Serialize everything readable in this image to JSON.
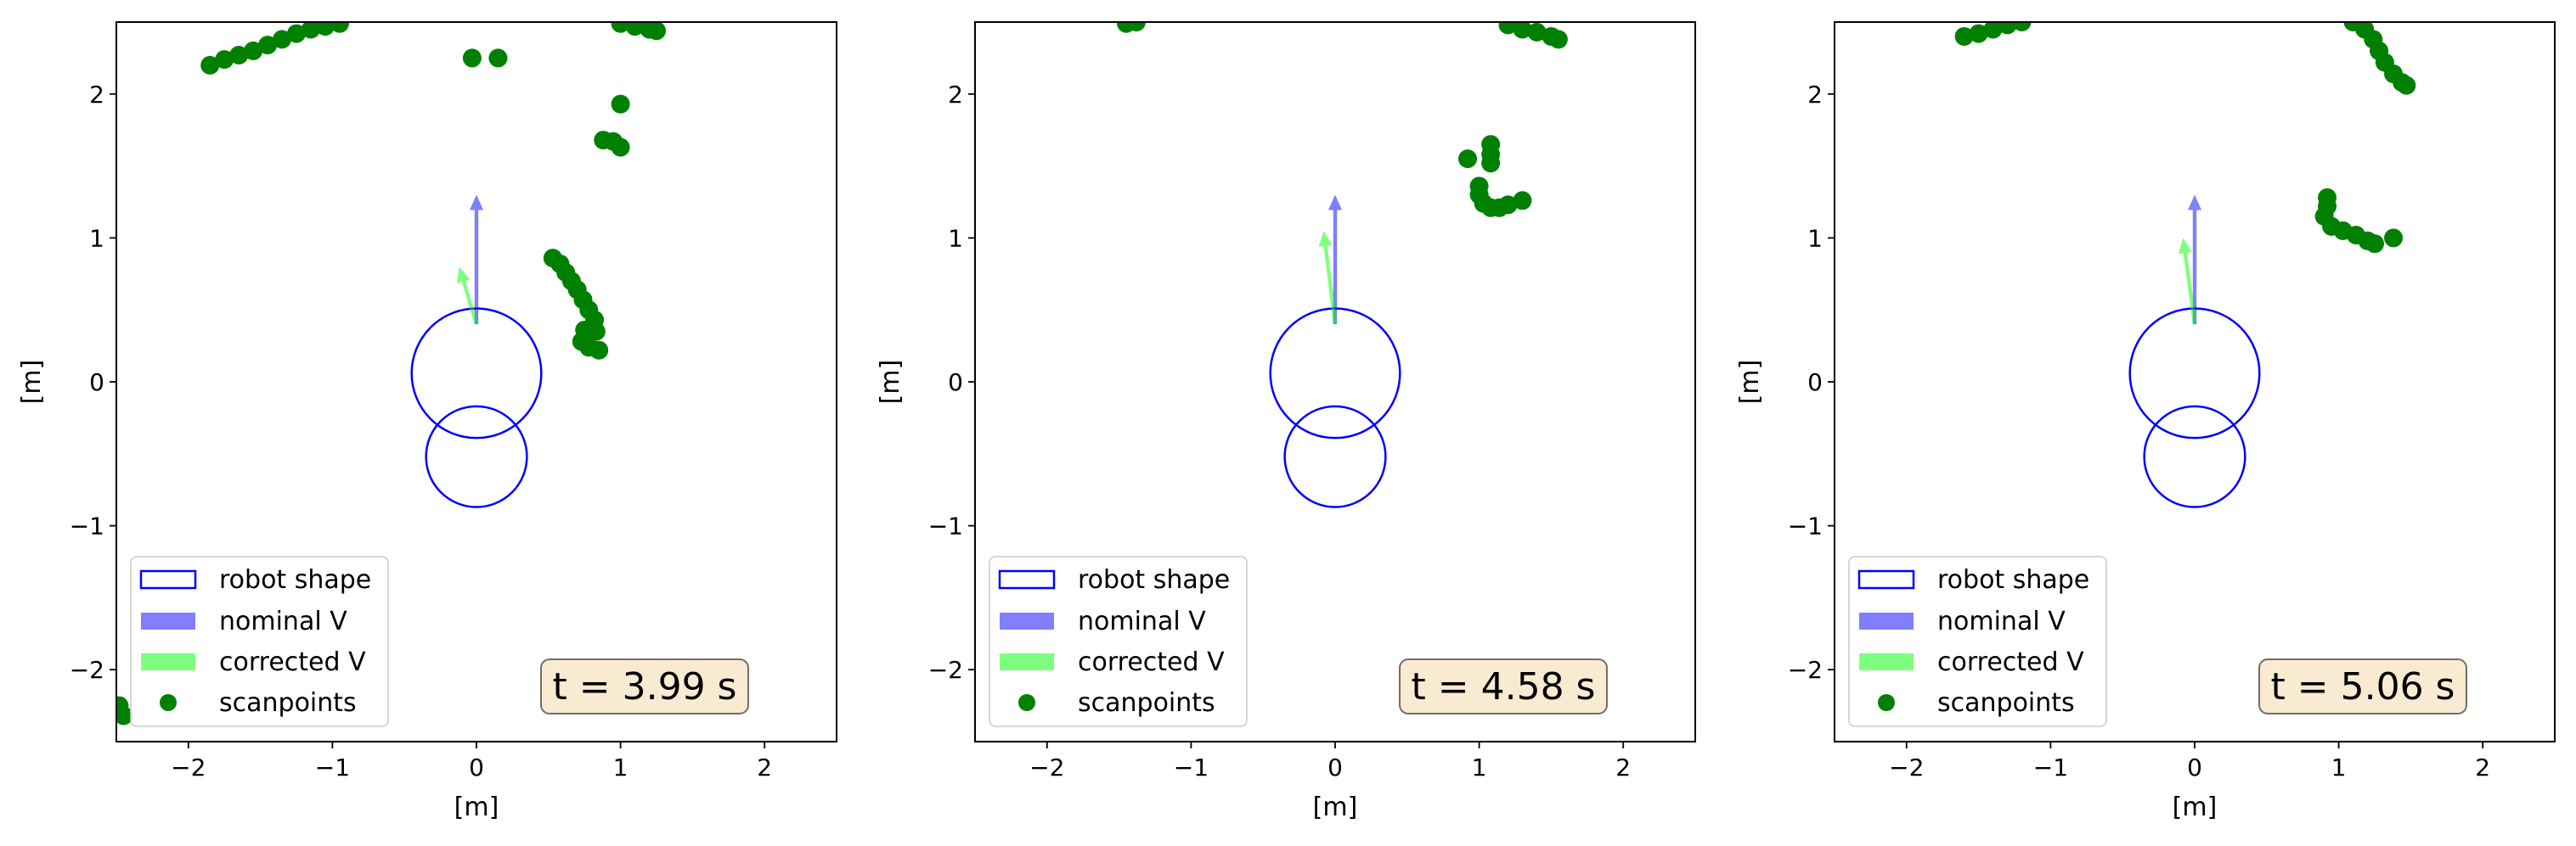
{
  "chart_data": [
    {
      "type": "scatter",
      "time_label": "t = 3.99 s",
      "xlabel": "[m]",
      "ylabel": "[m]",
      "xlim": [
        -2.5,
        2.5
      ],
      "ylim": [
        -2.5,
        2.5
      ],
      "xticks": [
        -2,
        -1,
        0,
        1,
        2
      ],
      "yticks": [
        -2,
        -1,
        0,
        1,
        2
      ],
      "tick_labels": [
        "−2",
        "−1",
        "0",
        "1",
        "2"
      ],
      "legend": [
        "robot shape",
        "nominal V",
        "corrected V",
        "scanpoints"
      ],
      "legend_position": "lower left",
      "robot_shape": [
        {
          "cx": 0,
          "cy": 0.06,
          "r": 0.45
        },
        {
          "cx": 0,
          "cy": -0.52,
          "r": 0.35
        }
      ],
      "nominal_v": {
        "from": [
          0,
          0.4
        ],
        "to": [
          0,
          1.3
        ]
      },
      "corrected_v": {
        "from": [
          0,
          0.4
        ],
        "to": [
          -0.12,
          0.8
        ]
      },
      "scanpoints": [
        [
          -1.85,
          2.2
        ],
        [
          -1.75,
          2.24
        ],
        [
          -1.65,
          2.27
        ],
        [
          -1.55,
          2.3
        ],
        [
          -1.45,
          2.34
        ],
        [
          -1.35,
          2.38
        ],
        [
          -1.25,
          2.42
        ],
        [
          -1.15,
          2.45
        ],
        [
          -1.05,
          2.47
        ],
        [
          -0.95,
          2.49
        ],
        [
          1.0,
          2.49
        ],
        [
          1.1,
          2.47
        ],
        [
          1.2,
          2.45
        ],
        [
          1.25,
          2.44
        ],
        [
          -0.03,
          2.25
        ],
        [
          0.15,
          2.25
        ],
        [
          1.0,
          1.93
        ],
        [
          0.88,
          1.68
        ],
        [
          0.95,
          1.67
        ],
        [
          1.0,
          1.63
        ],
        [
          0.53,
          0.86
        ],
        [
          0.58,
          0.82
        ],
        [
          0.62,
          0.76
        ],
        [
          0.66,
          0.7
        ],
        [
          0.7,
          0.64
        ],
        [
          0.74,
          0.57
        ],
        [
          0.78,
          0.5
        ],
        [
          0.82,
          0.43
        ],
        [
          0.83,
          0.35
        ],
        [
          0.75,
          0.36
        ],
        [
          0.73,
          0.28
        ],
        [
          0.78,
          0.24
        ],
        [
          0.85,
          0.22
        ],
        [
          -2.48,
          -2.25
        ],
        [
          -2.45,
          -2.32
        ]
      ]
    },
    {
      "type": "scatter",
      "time_label": "t = 4.58 s",
      "xlabel": "[m]",
      "ylabel": "[m]",
      "xlim": [
        -2.5,
        2.5
      ],
      "ylim": [
        -2.5,
        2.5
      ],
      "xticks": [
        -2,
        -1,
        0,
        1,
        2
      ],
      "yticks": [
        -2,
        -1,
        0,
        1,
        2
      ],
      "tick_labels": [
        "−2",
        "−1",
        "0",
        "1",
        "2"
      ],
      "legend": [
        "robot shape",
        "nominal V",
        "corrected V",
        "scanpoints"
      ],
      "legend_position": "lower left",
      "robot_shape": [
        {
          "cx": 0,
          "cy": 0.06,
          "r": 0.45
        },
        {
          "cx": 0,
          "cy": -0.52,
          "r": 0.35
        }
      ],
      "nominal_v": {
        "from": [
          0,
          0.4
        ],
        "to": [
          0,
          1.3
        ]
      },
      "corrected_v": {
        "from": [
          0,
          0.4
        ],
        "to": [
          -0.08,
          1.05
        ]
      },
      "scanpoints": [
        [
          -1.45,
          2.49
        ],
        [
          -1.38,
          2.5
        ],
        [
          1.2,
          2.48
        ],
        [
          1.3,
          2.45
        ],
        [
          1.4,
          2.43
        ],
        [
          1.5,
          2.4
        ],
        [
          1.55,
          2.38
        ],
        [
          0.92,
          1.55
        ],
        [
          1.08,
          1.65
        ],
        [
          1.08,
          1.58
        ],
        [
          1.08,
          1.52
        ],
        [
          1.0,
          1.36
        ],
        [
          1.0,
          1.3
        ],
        [
          1.03,
          1.24
        ],
        [
          1.08,
          1.21
        ],
        [
          1.14,
          1.21
        ],
        [
          1.2,
          1.23
        ],
        [
          1.3,
          1.26
        ]
      ]
    },
    {
      "type": "scatter",
      "time_label": "t = 5.06 s",
      "xlabel": "[m]",
      "ylabel": "[m]",
      "xlim": [
        -2.5,
        2.5
      ],
      "ylim": [
        -2.5,
        2.5
      ],
      "xticks": [
        -2,
        -1,
        0,
        1,
        2
      ],
      "yticks": [
        -2,
        -1,
        0,
        1,
        2
      ],
      "tick_labels": [
        "−2",
        "−1",
        "0",
        "1",
        "2"
      ],
      "legend": [
        "robot shape",
        "nominal V",
        "corrected V",
        "scanpoints"
      ],
      "legend_position": "lower left",
      "robot_shape": [
        {
          "cx": 0,
          "cy": 0.06,
          "r": 0.45
        },
        {
          "cx": 0,
          "cy": -0.52,
          "r": 0.35
        }
      ],
      "nominal_v": {
        "from": [
          0,
          0.4
        ],
        "to": [
          0,
          1.3
        ]
      },
      "corrected_v": {
        "from": [
          0,
          0.4
        ],
        "to": [
          -0.08,
          1.0
        ]
      },
      "scanpoints": [
        [
          -1.6,
          2.4
        ],
        [
          -1.5,
          2.42
        ],
        [
          -1.4,
          2.45
        ],
        [
          -1.3,
          2.48
        ],
        [
          -1.2,
          2.5
        ],
        [
          1.1,
          2.5
        ],
        [
          1.18,
          2.45
        ],
        [
          1.24,
          2.38
        ],
        [
          1.28,
          2.3
        ],
        [
          1.32,
          2.22
        ],
        [
          1.38,
          2.14
        ],
        [
          1.44,
          2.08
        ],
        [
          1.47,
          2.06
        ],
        [
          0.92,
          1.28
        ],
        [
          0.92,
          1.22
        ],
        [
          0.9,
          1.15
        ],
        [
          0.95,
          1.08
        ],
        [
          1.03,
          1.05
        ],
        [
          1.12,
          1.02
        ],
        [
          1.2,
          0.98
        ],
        [
          1.25,
          0.96
        ],
        [
          1.38,
          1.0
        ]
      ]
    }
  ]
}
